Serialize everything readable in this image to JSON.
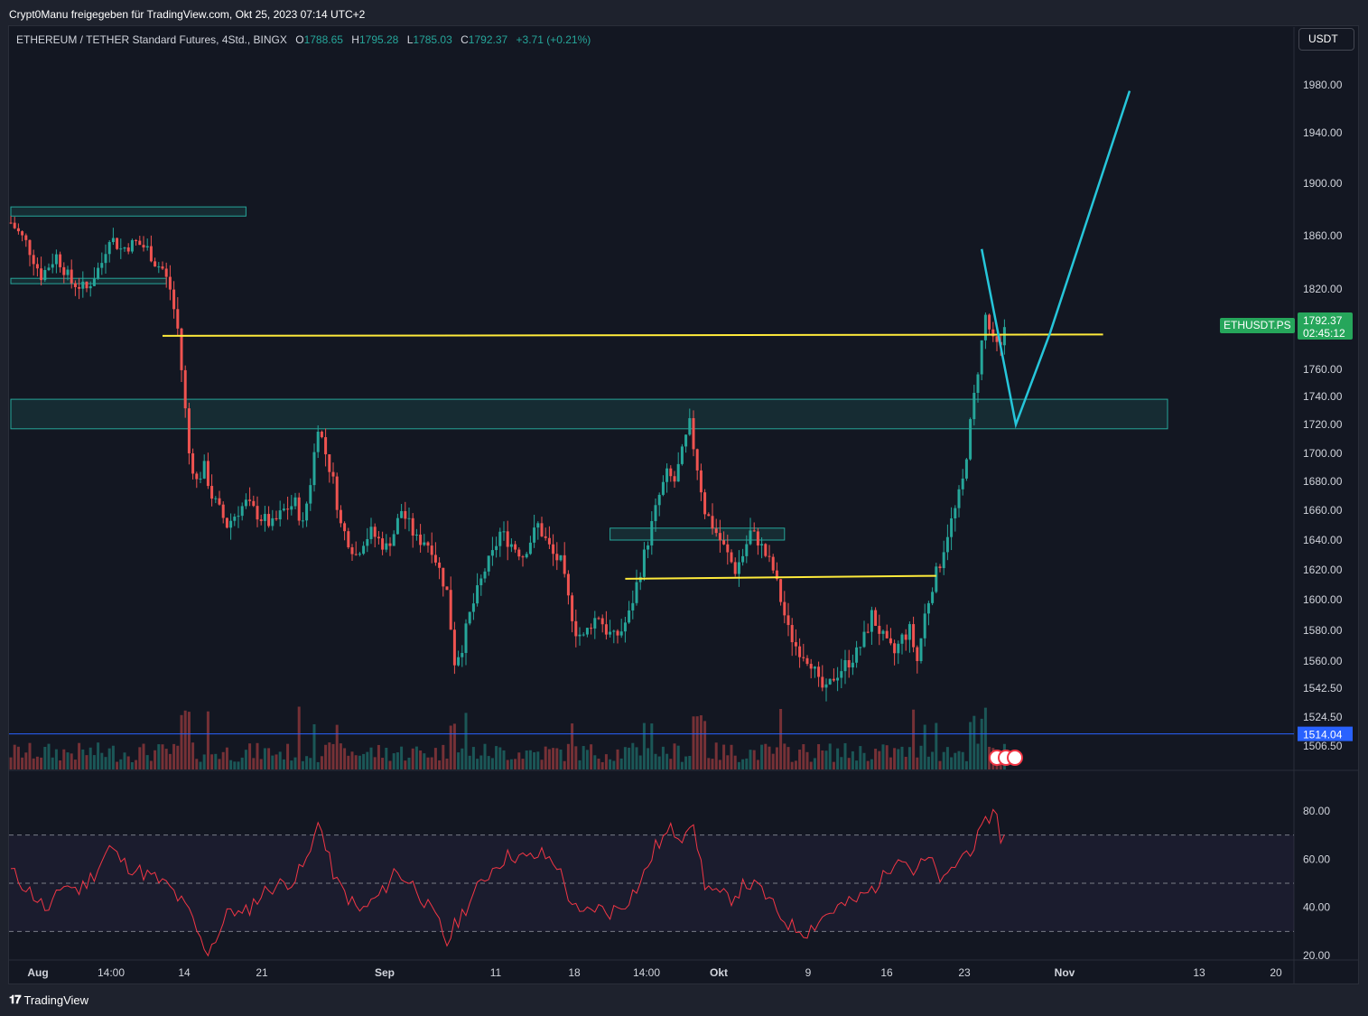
{
  "header": {
    "caption": "Crypt0Manu freigegeben für TradingView.com, Okt 25, 2023 07:14 UTC+2"
  },
  "legend": {
    "symbol_text": "ETHEREUM / TETHER Standard Futures, 4Std., BINGX",
    "open_label": "O",
    "open_value": "1788.65",
    "high_label": "H",
    "high_value": "1795.28",
    "low_label": "L",
    "low_value": "1785.03",
    "close_label": "C",
    "close_value": "1792.37",
    "change": "+3.71 (+0.21%)"
  },
  "currency_button": "USDT",
  "price_axis": {
    "ticks": [
      "1980.00",
      "1940.00",
      "1900.00",
      "1860.00",
      "1820.00",
      "1760.00",
      "1740.00",
      "1720.00",
      "1700.00",
      "1680.00",
      "1660.00",
      "1640.00",
      "1620.00",
      "1600.00",
      "1580.00",
      "1560.00",
      "1542.50",
      "1524.50",
      "1506.50"
    ],
    "current_price": "1792.37",
    "countdown": "02:45:12",
    "symbol_tag": "ETHUSDT.PS",
    "blue_line_price": "1514.04"
  },
  "rsi_axis": {
    "ticks": [
      "80.00",
      "60.00",
      "40.00",
      "20.00"
    ]
  },
  "time_axis": {
    "ticks": [
      "Aug",
      "14:00",
      "14",
      "21",
      "Sep",
      "11",
      "18",
      "14:00",
      "Okt",
      "9",
      "16",
      "23",
      "Nov",
      "13",
      "20"
    ]
  },
  "footer": {
    "brand": "TradingView"
  },
  "colors": {
    "up": "#26a69a",
    "down": "#ef5350",
    "yellow_line": "#ffeb3b",
    "projection": "#26c6da",
    "zone": "#26a69a",
    "rsi": "#f23645",
    "blue_line": "#2962ff"
  },
  "chart_data": {
    "type": "candlestick",
    "price_range": [
      1500,
      2000
    ],
    "rsi_range": [
      20,
      90
    ],
    "price_path": [
      [
        0,
        1870
      ],
      [
        4,
        1855
      ],
      [
        8,
        1830
      ],
      [
        12,
        1845
      ],
      [
        16,
        1825
      ],
      [
        20,
        1820
      ],
      [
        24,
        1840
      ],
      [
        26,
        1860
      ],
      [
        29,
        1850
      ],
      [
        33,
        1855
      ],
      [
        36,
        1850
      ],
      [
        38,
        1840
      ],
      [
        40,
        1835
      ],
      [
        42,
        1820
      ],
      [
        44,
        1790
      ],
      [
        45,
        1760
      ],
      [
        46,
        1730
      ],
      [
        47,
        1700
      ],
      [
        49,
        1680
      ],
      [
        51,
        1690
      ],
      [
        53,
        1670
      ],
      [
        55,
        1660
      ],
      [
        57,
        1650
      ],
      [
        60,
        1660
      ],
      [
        62,
        1665
      ],
      [
        64,
        1660
      ],
      [
        66,
        1655
      ],
      [
        69,
        1650
      ],
      [
        72,
        1660
      ],
      [
        75,
        1665
      ],
      [
        77,
        1650
      ],
      [
        79,
        1680
      ],
      [
        81,
        1720
      ],
      [
        83,
        1700
      ],
      [
        85,
        1680
      ],
      [
        87,
        1650
      ],
      [
        89,
        1640
      ],
      [
        91,
        1630
      ],
      [
        93,
        1640
      ],
      [
        95,
        1645
      ],
      [
        97,
        1640
      ],
      [
        99,
        1635
      ],
      [
        101,
        1645
      ],
      [
        103,
        1660
      ],
      [
        105,
        1650
      ],
      [
        107,
        1640
      ],
      [
        109,
        1640
      ],
      [
        111,
        1635
      ],
      [
        113,
        1620
      ],
      [
        115,
        1605
      ],
      [
        117,
        1560
      ],
      [
        119,
        1570
      ],
      [
        121,
        1590
      ],
      [
        123,
        1605
      ],
      [
        125,
        1620
      ],
      [
        127,
        1630
      ],
      [
        129,
        1645
      ],
      [
        131,
        1640
      ],
      [
        133,
        1635
      ],
      [
        135,
        1630
      ],
      [
        137,
        1640
      ],
      [
        139,
        1650
      ],
      [
        141,
        1640
      ],
      [
        143,
        1630
      ],
      [
        145,
        1625
      ],
      [
        147,
        1600
      ],
      [
        149,
        1580
      ],
      [
        151,
        1575
      ],
      [
        153,
        1585
      ],
      [
        155,
        1590
      ],
      [
        157,
        1580
      ],
      [
        159,
        1575
      ],
      [
        161,
        1580
      ],
      [
        163,
        1590
      ],
      [
        165,
        1610
      ],
      [
        167,
        1630
      ],
      [
        169,
        1650
      ],
      [
        171,
        1670
      ],
      [
        173,
        1685
      ],
      [
        175,
        1680
      ],
      [
        177,
        1700
      ],
      [
        179,
        1720
      ],
      [
        181,
        1690
      ],
      [
        183,
        1660
      ],
      [
        185,
        1650
      ],
      [
        187,
        1640
      ],
      [
        189,
        1630
      ],
      [
        191,
        1620
      ],
      [
        193,
        1630
      ],
      [
        195,
        1645
      ],
      [
        197,
        1640
      ],
      [
        199,
        1630
      ],
      [
        201,
        1620
      ],
      [
        203,
        1600
      ],
      [
        205,
        1580
      ],
      [
        207,
        1570
      ],
      [
        209,
        1565
      ],
      [
        211,
        1560
      ],
      [
        213,
        1545
      ],
      [
        215,
        1540
      ],
      [
        217,
        1550
      ],
      [
        219,
        1555
      ],
      [
        221,
        1560
      ],
      [
        223,
        1565
      ],
      [
        225,
        1575
      ],
      [
        227,
        1590
      ],
      [
        229,
        1580
      ],
      [
        231,
        1570
      ],
      [
        233,
        1565
      ],
      [
        235,
        1575
      ],
      [
        237,
        1580
      ],
      [
        239,
        1560
      ],
      [
        241,
        1590
      ],
      [
        243,
        1610
      ],
      [
        245,
        1625
      ],
      [
        247,
        1645
      ],
      [
        249,
        1660
      ],
      [
        251,
        1680
      ],
      [
        253,
        1720
      ],
      [
        255,
        1760
      ],
      [
        257,
        1800
      ],
      [
        259,
        1780
      ],
      [
        261,
        1775
      ],
      [
        262,
        1792
      ]
    ],
    "rsi_path": [
      [
        0,
        55
      ],
      [
        6,
        45
      ],
      [
        10,
        38
      ],
      [
        14,
        50
      ],
      [
        18,
        47
      ],
      [
        22,
        54
      ],
      [
        26,
        65
      ],
      [
        30,
        58
      ],
      [
        34,
        55
      ],
      [
        38,
        52
      ],
      [
        42,
        48
      ],
      [
        46,
        40
      ],
      [
        48,
        35
      ],
      [
        50,
        26
      ],
      [
        52,
        22
      ],
      [
        55,
        30
      ],
      [
        58,
        40
      ],
      [
        61,
        36
      ],
      [
        64,
        42
      ],
      [
        68,
        48
      ],
      [
        72,
        50
      ],
      [
        75,
        52
      ],
      [
        79,
        62
      ],
      [
        81,
        78
      ],
      [
        83,
        64
      ],
      [
        86,
        50
      ],
      [
        89,
        44
      ],
      [
        92,
        38
      ],
      [
        95,
        42
      ],
      [
        98,
        46
      ],
      [
        101,
        55
      ],
      [
        104,
        52
      ],
      [
        107,
        48
      ],
      [
        110,
        40
      ],
      [
        113,
        33
      ],
      [
        115,
        25
      ],
      [
        117,
        32
      ],
      [
        120,
        40
      ],
      [
        124,
        50
      ],
      [
        128,
        58
      ],
      [
        132,
        62
      ],
      [
        136,
        60
      ],
      [
        140,
        62
      ],
      [
        144,
        58
      ],
      [
        147,
        45
      ],
      [
        150,
        36
      ],
      [
        154,
        40
      ],
      [
        158,
        38
      ],
      [
        162,
        42
      ],
      [
        166,
        50
      ],
      [
        170,
        65
      ],
      [
        174,
        72
      ],
      [
        177,
        70
      ],
      [
        179,
        76
      ],
      [
        181,
        66
      ],
      [
        183,
        50
      ],
      [
        186,
        45
      ],
      [
        190,
        44
      ],
      [
        194,
        50
      ],
      [
        198,
        47
      ],
      [
        202,
        38
      ],
      [
        206,
        32
      ],
      [
        210,
        30
      ],
      [
        214,
        36
      ],
      [
        218,
        40
      ],
      [
        222,
        42
      ],
      [
        226,
        46
      ],
      [
        230,
        52
      ],
      [
        234,
        63
      ],
      [
        238,
        55
      ],
      [
        242,
        60
      ],
      [
        246,
        50
      ],
      [
        250,
        60
      ],
      [
        254,
        66
      ],
      [
        256,
        71
      ],
      [
        258,
        78
      ],
      [
        260,
        80
      ],
      [
        261,
        69
      ],
      [
        262,
        69
      ]
    ],
    "zones": [
      {
        "x0": 0,
        "x1": 62,
        "p0": 1882,
        "p1": 1875
      },
      {
        "x0": 0,
        "x1": 41,
        "p0": 1828,
        "p1": 1824
      },
      {
        "x0": 0,
        "x1": 305,
        "p0": 1738,
        "p1": 1717
      },
      {
        "x0": 158,
        "x1": 204,
        "p0": 1648,
        "p1": 1640
      }
    ],
    "yellow_lines": [
      {
        "x0": 40,
        "p0": 1785,
        "x1": 288,
        "p1": 1786
      },
      {
        "x0": 162,
        "p0": 1614,
        "x1": 244,
        "p1": 1616
      }
    ],
    "projection": [
      [
        256,
        1850
      ],
      [
        265,
        1720
      ],
      [
        274,
        1787
      ],
      [
        295,
        1985
      ]
    ]
  }
}
